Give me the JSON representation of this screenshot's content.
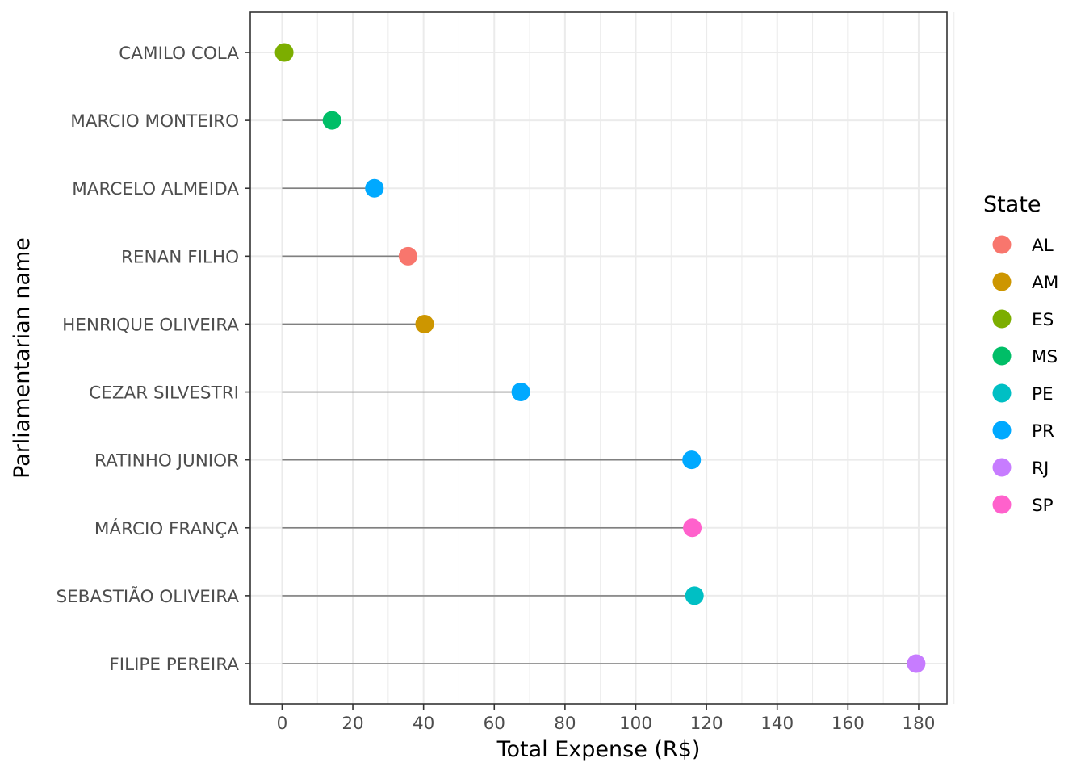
{
  "chart_data": {
    "type": "lollipop",
    "title": "",
    "xlabel": "Total Expense (R$)",
    "ylabel": "Parliamentarian name",
    "xlim": [
      -9,
      188
    ],
    "xticks": [
      0,
      20,
      40,
      60,
      80,
      100,
      120,
      140,
      160,
      180
    ],
    "grid": true,
    "legend": {
      "title": "State",
      "position": "right",
      "entries": [
        {
          "label": "AL",
          "color": "#F8766D"
        },
        {
          "label": "AM",
          "color": "#CD9600"
        },
        {
          "label": "ES",
          "color": "#7CAE00"
        },
        {
          "label": "MS",
          "color": "#00BE67"
        },
        {
          "label": "PE",
          "color": "#00BFC4"
        },
        {
          "label": "PR",
          "color": "#00A9FF"
        },
        {
          "label": "RJ",
          "color": "#C77CFF"
        },
        {
          "label": "SP",
          "color": "#FF61CC"
        }
      ]
    },
    "points": [
      {
        "name": "CAMILO COLA",
        "value": 0.6,
        "state": "ES"
      },
      {
        "name": "MARCIO MONTEIRO",
        "value": 14.1,
        "state": "MS"
      },
      {
        "name": "MARCELO ALMEIDA",
        "value": 26.1,
        "state": "PR"
      },
      {
        "name": "RENAN FILHO",
        "value": 35.6,
        "state": "AL"
      },
      {
        "name": "HENRIQUE OLIVEIRA",
        "value": 40.3,
        "state": "AM"
      },
      {
        "name": "CEZAR SILVESTRI",
        "value": 67.5,
        "state": "PR"
      },
      {
        "name": "RATINHO JUNIOR",
        "value": 115.8,
        "state": "PR"
      },
      {
        "name": "MÁRCIO FRANÇA",
        "value": 116.0,
        "state": "SP"
      },
      {
        "name": "SEBASTIÃO OLIVEIRA",
        "value": 116.6,
        "state": "PE"
      },
      {
        "name": "FILIPE PEREIRA",
        "value": 179.3,
        "state": "RJ"
      }
    ]
  }
}
